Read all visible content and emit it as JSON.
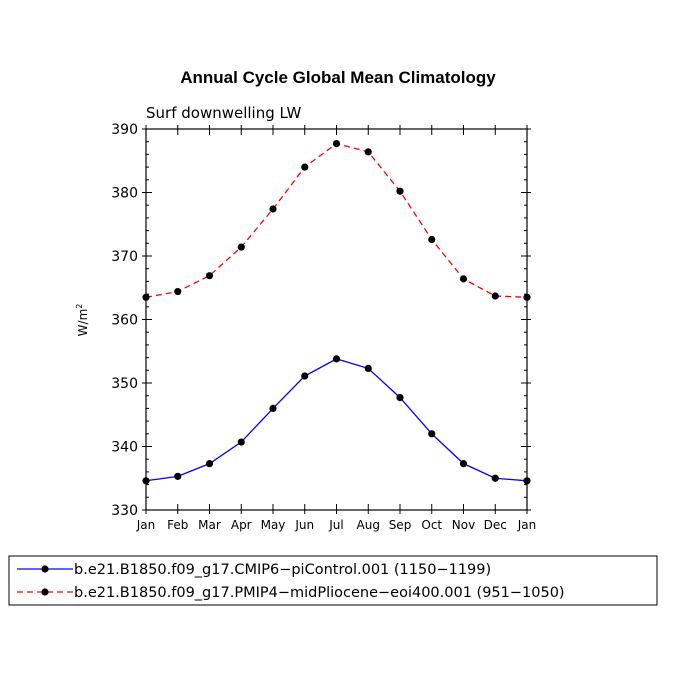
{
  "chart_data": {
    "type": "line",
    "title": "Annual Cycle Global Mean Climatology",
    "subtitle": "Surf downwelling LW",
    "ylabel_base": "W/m",
    "ylabel_sup": "2",
    "categories": [
      "Jan",
      "Feb",
      "Mar",
      "Apr",
      "May",
      "Jun",
      "Jul",
      "Aug",
      "Sep",
      "Oct",
      "Nov",
      "Dec",
      "Jan"
    ],
    "ylim": [
      330,
      390
    ],
    "yticks": [
      330,
      340,
      350,
      360,
      370,
      380,
      390
    ],
    "series": [
      {
        "name": "b.e21.B1850.f09_g17.CMIP6-piControl.001 (1150-1199)",
        "label": "b.e21.B1850.f09_g17.CMIP6−piControl.001 (1150−1199)",
        "color": "#0000ff",
        "dash": "solid",
        "values": [
          334.6,
          335.3,
          337.3,
          340.7,
          346.0,
          351.1,
          353.8,
          352.3,
          347.7,
          342.0,
          337.3,
          335.0,
          334.6
        ]
      },
      {
        "name": "b.e21.B1850.f09_g17.PMIP4-midPliocene-eoi400.001 (951-1050)",
        "label": "b.e21.B1850.f09_g17.PMIP4−midPliocene−eoi400.001 (951−1050)",
        "color": "#ff0000",
        "dash": "dashed",
        "values": [
          363.5,
          364.4,
          366.9,
          371.4,
          377.4,
          384.0,
          387.7,
          386.4,
          380.2,
          372.6,
          366.4,
          363.7,
          363.5
        ]
      }
    ]
  }
}
